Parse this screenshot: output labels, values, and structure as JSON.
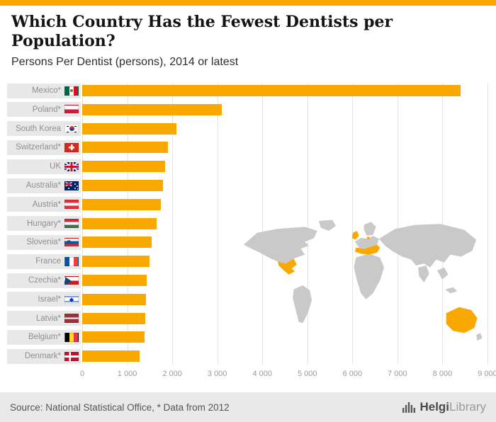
{
  "accent_color": "#F9A800",
  "header": {
    "title": "Which Country Has the Fewest Dentists per Population?",
    "subtitle": "Persons Per Dentist (persons), 2014 or latest"
  },
  "chart_data": {
    "type": "bar",
    "orientation": "horizontal",
    "title": "Which Country Has the Fewest Dentists per Population?",
    "subtitle": "Persons Per Dentist (persons), 2014 or latest",
    "categories": [
      "Mexico*",
      "Poland*",
      "South Korea",
      "Switzerland*",
      "UK",
      "Australia*",
      "Austria*",
      "Hungary*",
      "Slovenia*",
      "France",
      "Czechia*",
      "Israel*",
      "Latvia*",
      "Belgium*",
      "Denmark*"
    ],
    "values": [
      8400,
      3100,
      2100,
      1900,
      1840,
      1790,
      1740,
      1650,
      1540,
      1490,
      1430,
      1410,
      1400,
      1380,
      1280
    ],
    "flags": [
      "mx",
      "pl",
      "kr",
      "ch",
      "gb",
      "au",
      "at",
      "hu",
      "si",
      "fr",
      "cz",
      "il",
      "lv",
      "be",
      "dk"
    ],
    "xlim": [
      0,
      9000
    ],
    "x_ticks": [
      "0",
      "1 000",
      "2 000",
      "3 000",
      "4 000",
      "5 000",
      "6 000",
      "7 000",
      "8 000",
      "9 000"
    ],
    "bar_color": "#F9A800",
    "grid": true,
    "legend": "none",
    "map": {
      "land_color": "#c9c9c9",
      "highlight_color": "#F9A800",
      "highlighted_regions": [
        "Mexico",
        "UK",
        "Central Europe",
        "Australia"
      ]
    }
  },
  "footer": {
    "source": "Source: National Statistical Office, * Data from 2012",
    "logo_bold": "Helgi",
    "logo_light": "Library"
  }
}
